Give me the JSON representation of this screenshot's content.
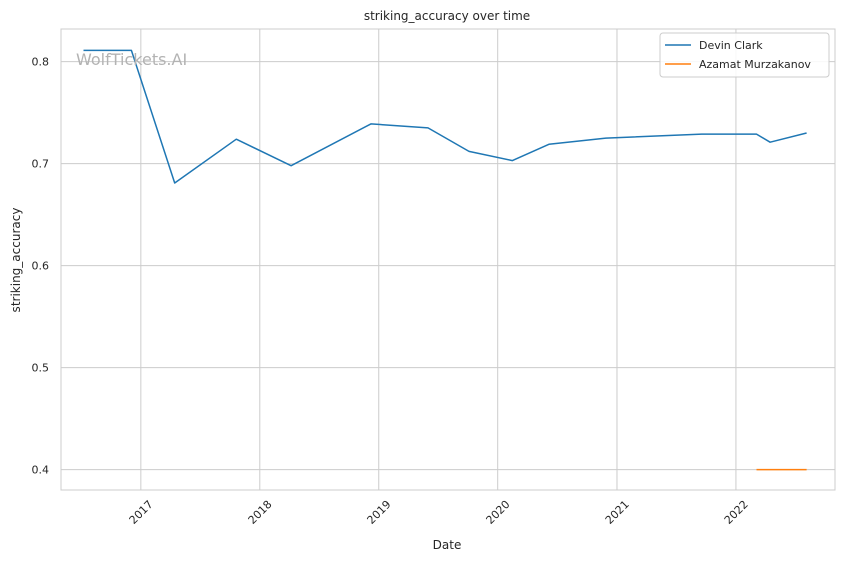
{
  "watermark": "WolfTickets.AI",
  "chart_data": {
    "type": "line",
    "title": "striking_accuracy over time",
    "xlabel": "Date",
    "ylabel": "striking_accuracy",
    "xlim": [
      "2016-05-01",
      "2022-11-01"
    ],
    "ylim": [
      0.38,
      0.832
    ],
    "grid": true,
    "legend_position": "top-right",
    "yticks": [
      {
        "value": 0.4,
        "label": "0.4"
      },
      {
        "value": 0.5,
        "label": "0.5"
      },
      {
        "value": 0.6,
        "label": "0.6"
      },
      {
        "value": 0.7,
        "label": "0.7"
      },
      {
        "value": 0.8,
        "label": "0.8"
      }
    ],
    "xticks": [
      {
        "date": "2017-01-01",
        "label": "2017"
      },
      {
        "date": "2018-01-01",
        "label": "2018"
      },
      {
        "date": "2019-01-01",
        "label": "2019"
      },
      {
        "date": "2020-01-01",
        "label": "2020"
      },
      {
        "date": "2021-01-01",
        "label": "2021"
      },
      {
        "date": "2022-01-01",
        "label": "2022"
      }
    ],
    "series": [
      {
        "name": "Devin Clark",
        "color": "#1f77b4",
        "points": [
          {
            "x": "2016-07-09",
            "y": 0.811
          },
          {
            "x": "2016-12-03",
            "y": 0.811
          },
          {
            "x": "2017-04-15",
            "y": 0.681
          },
          {
            "x": "2017-10-21",
            "y": 0.724
          },
          {
            "x": "2018-04-07",
            "y": 0.698
          },
          {
            "x": "2018-12-08",
            "y": 0.739
          },
          {
            "x": "2019-06-01",
            "y": 0.735
          },
          {
            "x": "2019-10-05",
            "y": 0.712
          },
          {
            "x": "2020-02-15",
            "y": 0.703
          },
          {
            "x": "2020-06-06",
            "y": 0.719
          },
          {
            "x": "2020-11-28",
            "y": 0.725
          },
          {
            "x": "2021-09-18",
            "y": 0.729
          },
          {
            "x": "2022-03-05",
            "y": 0.729
          },
          {
            "x": "2022-04-16",
            "y": 0.721
          },
          {
            "x": "2022-08-06",
            "y": 0.73
          }
        ]
      },
      {
        "name": "Azamat Murzakanov",
        "color": "#ff7f0e",
        "points": [
          {
            "x": "2022-03-05",
            "y": 0.4
          },
          {
            "x": "2022-08-06",
            "y": 0.4
          }
        ]
      }
    ]
  }
}
